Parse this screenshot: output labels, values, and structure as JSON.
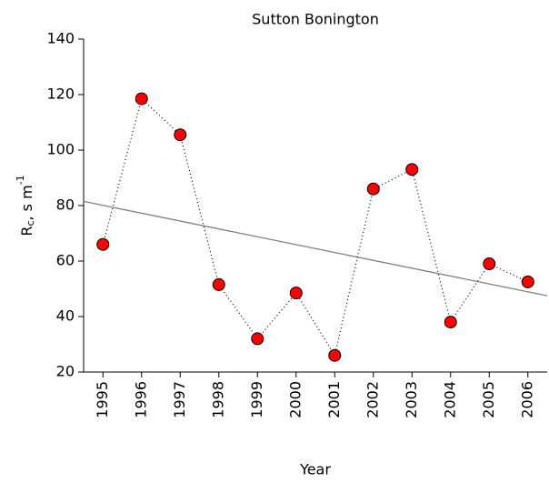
{
  "chart_data": {
    "type": "line",
    "title": "Sutton Bonington",
    "x_label": "Year",
    "y_label": {
      "base": "R",
      "sub": "c",
      "mid": ", s m",
      "sup": "-1"
    },
    "categories": [
      "1995",
      "1996",
      "1997",
      "1998",
      "1999",
      "2000",
      "2001",
      "2002",
      "2003",
      "2004",
      "2005",
      "2006"
    ],
    "series": [
      {
        "color": "#ff0000",
        "values": [
          66,
          118.5,
          105.5,
          51.5,
          32,
          48.5,
          26,
          86,
          93,
          38,
          59,
          52.5
        ]
      }
    ],
    "trend_line": {
      "color": "#808080",
      "values": [
        81.5,
        47.5
      ]
    },
    "ylim": [
      20,
      140
    ],
    "yticks": [
      20,
      40,
      60,
      80,
      100,
      120,
      140
    ]
  }
}
